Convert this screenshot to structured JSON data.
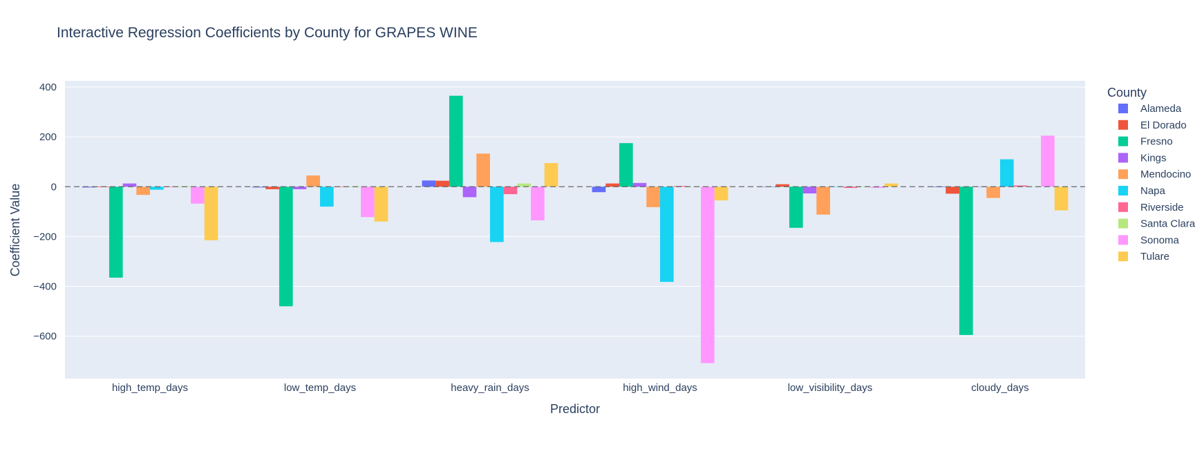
{
  "chart_data": {
    "type": "bar",
    "title": "Interactive Regression Coefficients by County for GRAPES WINE",
    "xlabel": "Predictor",
    "ylabel": "Coefficient Value",
    "ylim": [
      -770,
      425
    ],
    "yticks": [
      400,
      200,
      0,
      -200,
      -400,
      -600
    ],
    "ytick_labels": [
      "400",
      "200",
      "0",
      "−200",
      "−400",
      "−600"
    ],
    "grid": true,
    "zero_line": "dashed",
    "legend_title": "County",
    "legend_position": "right",
    "categories": [
      "high_temp_days",
      "low_temp_days",
      "heavy_rain_days",
      "high_wind_days",
      "low_visibility_days",
      "cloudy_days"
    ],
    "series": [
      {
        "name": "Alameda",
        "color": "#636efa",
        "values": [
          -3,
          -3,
          25,
          -22,
          0,
          -2
        ]
      },
      {
        "name": "El Dorado",
        "color": "#ef553b",
        "values": [
          -2,
          -10,
          24,
          13,
          10,
          -28
        ]
      },
      {
        "name": "Fresno",
        "color": "#00cc96",
        "values": [
          -365,
          -480,
          365,
          175,
          -165,
          -595
        ]
      },
      {
        "name": "Kings",
        "color": "#ab63fa",
        "values": [
          13,
          -10,
          -42,
          15,
          -27,
          0
        ]
      },
      {
        "name": "Mendocino",
        "color": "#ffa15a",
        "values": [
          -33,
          45,
          133,
          -82,
          -112,
          -45
        ]
      },
      {
        "name": "Napa",
        "color": "#19d3f3",
        "values": [
          -12,
          -80,
          -222,
          -382,
          0,
          110
        ]
      },
      {
        "name": "Riverside",
        "color": "#ff6692",
        "values": [
          -2,
          -2,
          -30,
          3,
          -5,
          5
        ]
      },
      {
        "name": "Santa Clara",
        "color": "#b6e880",
        "values": [
          -2,
          -2,
          13,
          0,
          -2,
          0
        ]
      },
      {
        "name": "Sonoma",
        "color": "#ff97ff",
        "values": [
          -68,
          -122,
          -135,
          -708,
          -5,
          205
        ]
      },
      {
        "name": "Tulare",
        "color": "#fecb52",
        "values": [
          -215,
          -140,
          95,
          -55,
          13,
          -95
        ]
      }
    ]
  }
}
